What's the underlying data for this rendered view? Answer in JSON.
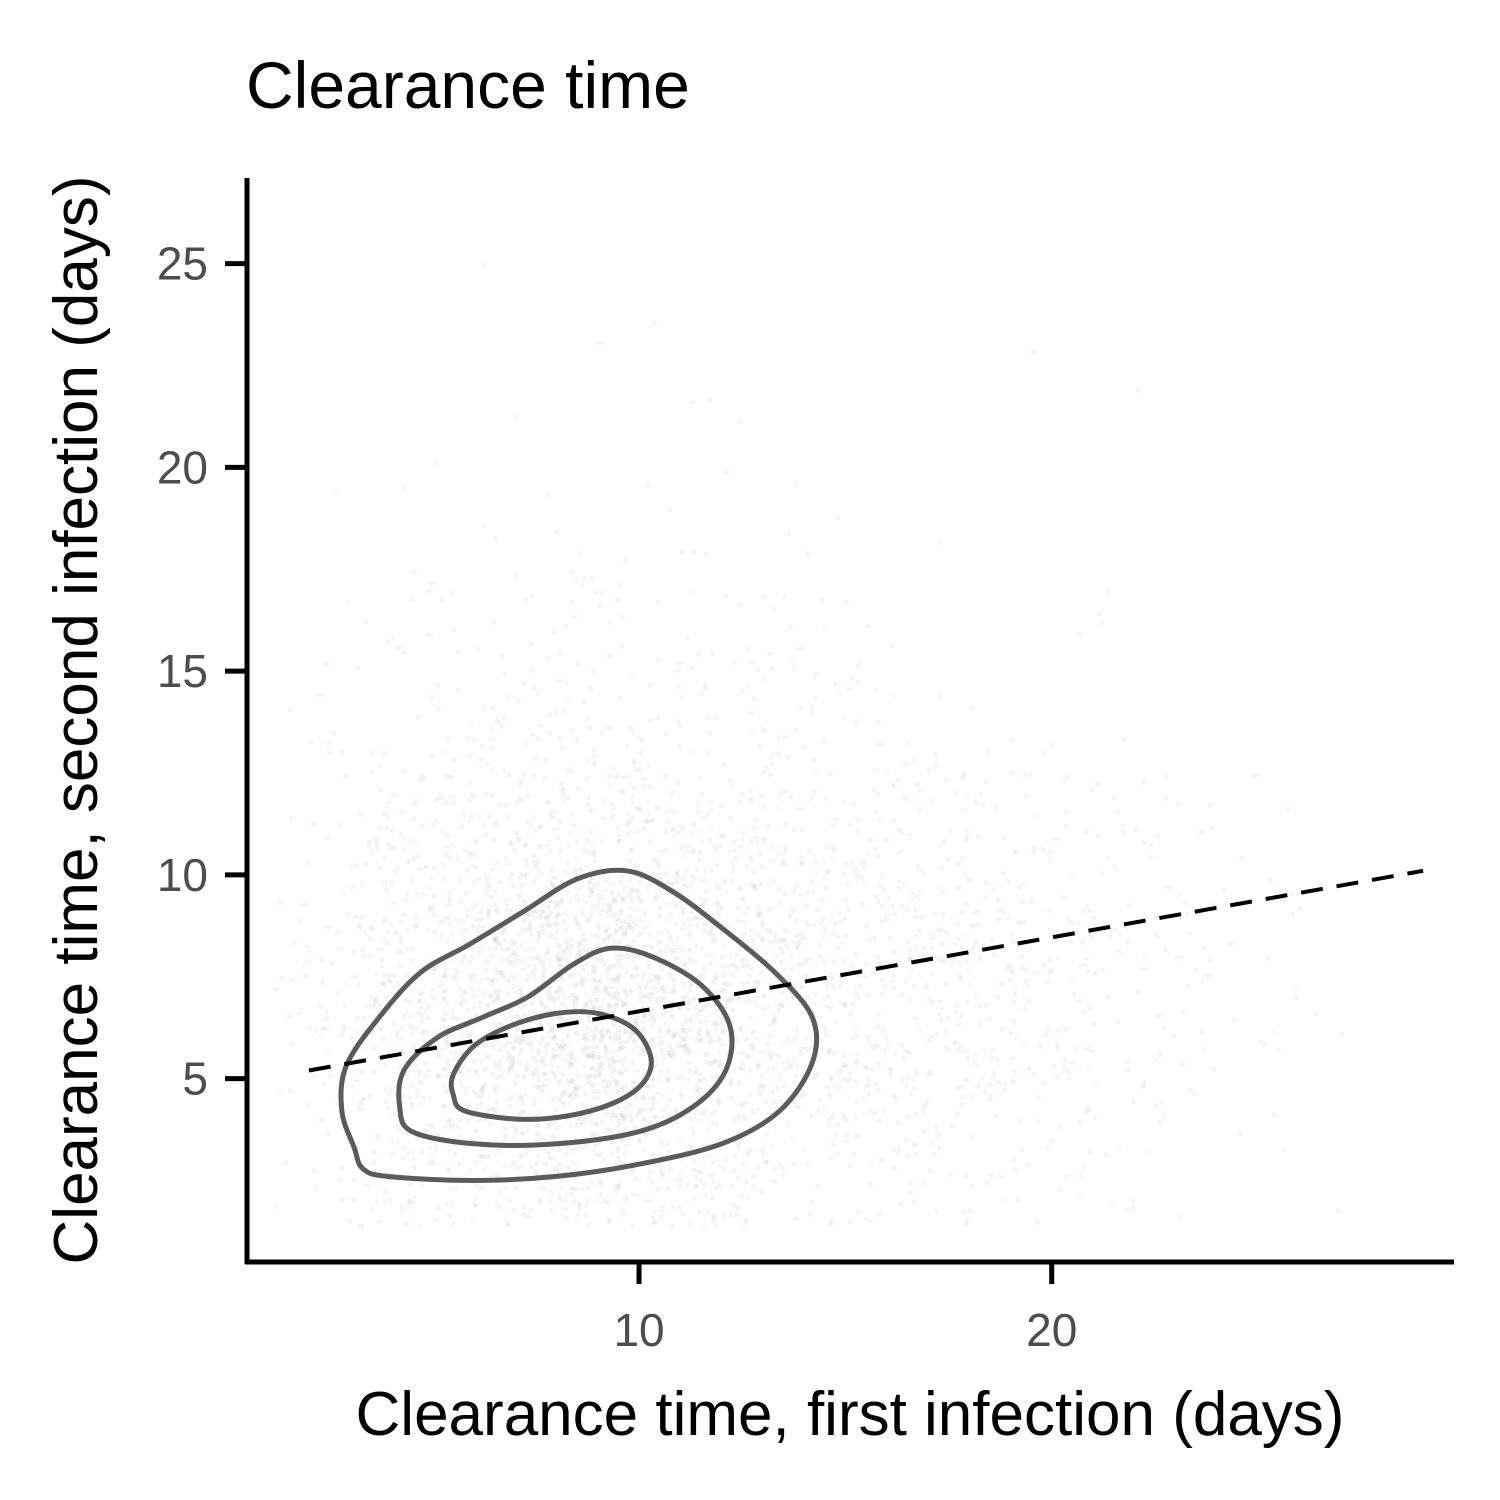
{
  "chart_data": {
    "type": "scatter",
    "title": "Clearance time",
    "xlabel": "Clearance time, first infection (days)",
    "ylabel": "Clearance time, second infection (days)",
    "xlim": [
      0.5,
      29.7
    ],
    "ylim": [
      0.5,
      27.1
    ],
    "x_ticks": [
      10,
      20
    ],
    "y_ticks": [
      5,
      10,
      15,
      20,
      25
    ],
    "x_tick_labels": [
      "10",
      "20"
    ],
    "y_tick_labels": [
      "5",
      "10",
      "15",
      "20",
      "25"
    ],
    "grid": false,
    "legend": "none",
    "point_color": "#b3b3b3",
    "contour_color": "#4d4d4d",
    "trend_line": {
      "style": "dashed",
      "color": "#000000",
      "x": [
        2,
        29
      ],
      "y": [
        5.2,
        10.1
      ]
    },
    "density_contours": [
      {
        "level": "outer",
        "points": [
          [
            3.3,
            2.8
          ],
          [
            3.9,
            2.6
          ],
          [
            6,
            2.5
          ],
          [
            8,
            2.6
          ],
          [
            10,
            2.9
          ],
          [
            12,
            3.4
          ],
          [
            13.4,
            4.2
          ],
          [
            14.2,
            5.4
          ],
          [
            14.2,
            6.5
          ],
          [
            13.3,
            7.6
          ],
          [
            12,
            8.7
          ],
          [
            10.8,
            9.6
          ],
          [
            9.7,
            10.1
          ],
          [
            8.5,
            9.9
          ],
          [
            7.2,
            9.1
          ],
          [
            5.9,
            8.3
          ],
          [
            4.7,
            7.6
          ],
          [
            3.7,
            6.5
          ],
          [
            2.9,
            5.3
          ],
          [
            2.8,
            4.2
          ],
          [
            3.1,
            3.3
          ]
        ]
      },
      {
        "level": "middle",
        "points": [
          [
            4.5,
            3.7
          ],
          [
            6,
            3.4
          ],
          [
            8,
            3.4
          ],
          [
            10,
            3.7
          ],
          [
            11.3,
            4.3
          ],
          [
            12.1,
            5.2
          ],
          [
            12.2,
            6.3
          ],
          [
            11.5,
            7.3
          ],
          [
            10.3,
            8.0
          ],
          [
            9.3,
            8.2
          ],
          [
            8.4,
            7.8
          ],
          [
            7.3,
            7.0
          ],
          [
            6.2,
            6.5
          ],
          [
            5.1,
            6.0
          ],
          [
            4.3,
            5.2
          ],
          [
            4.2,
            4.3
          ]
        ]
      },
      {
        "level": "inner",
        "points": [
          [
            5.8,
            4.2
          ],
          [
            7.3,
            4.0
          ],
          [
            8.8,
            4.2
          ],
          [
            9.9,
            4.7
          ],
          [
            10.3,
            5.4
          ],
          [
            9.9,
            6.2
          ],
          [
            9.0,
            6.6
          ],
          [
            8.0,
            6.6
          ],
          [
            6.9,
            6.3
          ],
          [
            6.0,
            5.8
          ],
          [
            5.5,
            5.1
          ],
          [
            5.5,
            4.6
          ]
        ]
      }
    ]
  }
}
